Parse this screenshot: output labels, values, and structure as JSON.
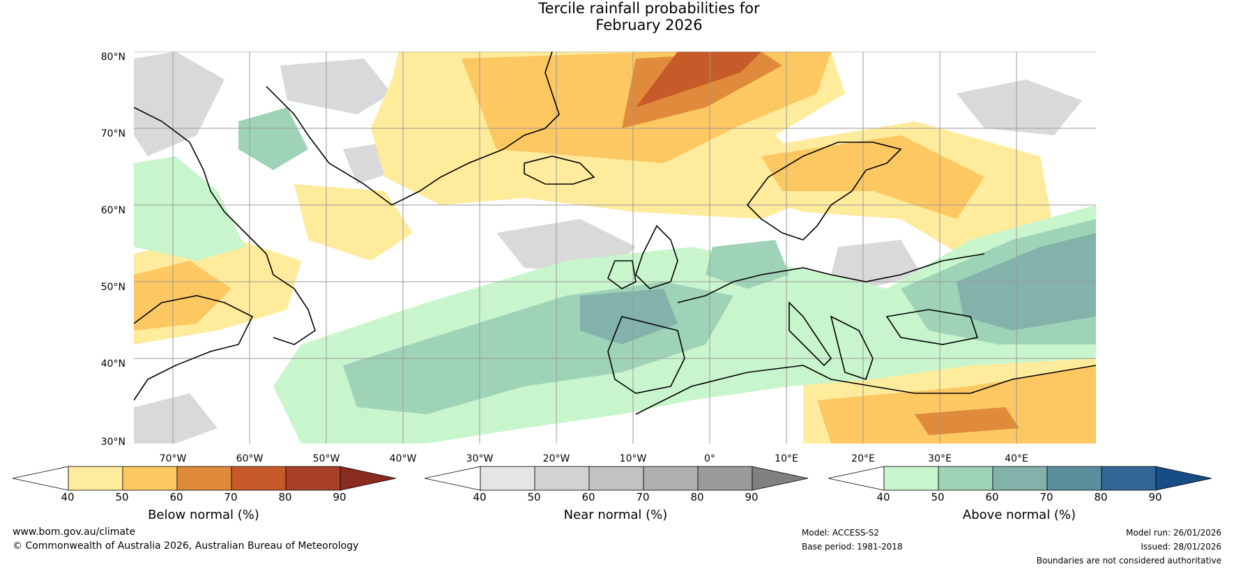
{
  "title_line1": "Tercile rainfall probabilities for",
  "title_line2": "February 2026",
  "lat_labels": [
    "80°N",
    "70°N",
    "60°N",
    "50°N",
    "40°N",
    "30°N"
  ],
  "lon_labels": [
    "70°W",
    "60°W",
    "50°W",
    "40°W",
    "30°W",
    "20°W",
    "10°W",
    "0°",
    "10°E",
    "20°E",
    "30°E",
    "40°E"
  ],
  "colorbars": [
    {
      "label": "Below normal (%)",
      "ticks": [
        "40",
        "50",
        "60",
        "70",
        "80",
        "90"
      ],
      "colors": [
        "#ffffff",
        "#ffeb9c",
        "#fdc762",
        "#e08a3b",
        "#c65a28",
        "#a9412a",
        "#8b2a1f"
      ]
    },
    {
      "label": "Near normal (%)",
      "ticks": [
        "40",
        "50",
        "60",
        "70",
        "80",
        "90"
      ],
      "colors": [
        "#ffffff",
        "#e5e5e5",
        "#d2d2d2",
        "#c2c2c2",
        "#b0b0b0",
        "#9b9b9b",
        "#808080"
      ]
    },
    {
      "label": "Above normal (%)",
      "ticks": [
        "40",
        "50",
        "60",
        "70",
        "80",
        "90"
      ],
      "colors": [
        "#ffffff",
        "#c9f5cc",
        "#9fd3b8",
        "#82b2aa",
        "#5b8f9e",
        "#326694",
        "#164d84"
      ]
    }
  ],
  "footer": {
    "website": "www.bom.gov.au/climate",
    "copyright": "© Commonwealth of Australia 2026, Australian Bureau of Meteorology",
    "model": "Model: ACCESS-S2",
    "base_period": "Base period: 1981-2018",
    "model_run": "Model run: 26/01/2026",
    "issued": "Issued: 28/01/2026",
    "disclaimer": "Boundaries are not considered authoritative"
  }
}
